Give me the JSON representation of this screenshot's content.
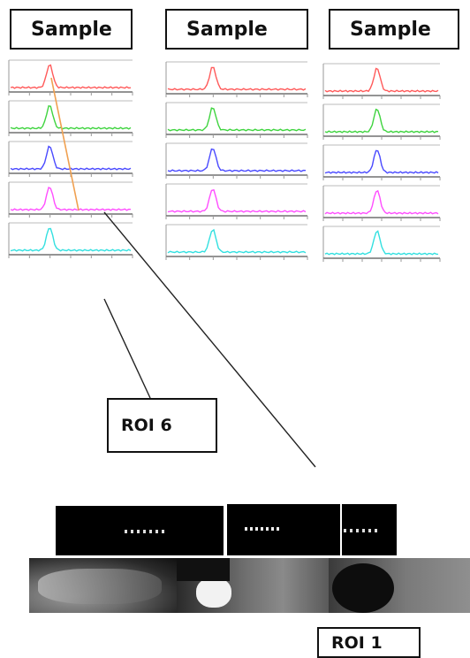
{
  "headers": [
    "Sample",
    "Sample",
    "Sample"
  ],
  "roi_labels": {
    "roi6": "ROI 6",
    "roi1": "ROI 1"
  },
  "trace_colors": [
    "#ff5a5a",
    "#3fd43f",
    "#4a4aff",
    "#ff4dff",
    "#33e0e0"
  ],
  "connector_colors": {
    "highlight": "#f0a050",
    "leader": "#222222"
  },
  "chart_data": [
    {
      "type": "line",
      "title": "",
      "panel": "left",
      "traces": 5,
      "peak_shape": "single narrow peak per trace"
    },
    {
      "type": "line",
      "title": "",
      "panel": "middle",
      "traces": 5,
      "peak_shape": "single narrow peak per trace"
    },
    {
      "type": "line",
      "title": "",
      "panel": "right",
      "traces": 5,
      "peak_shape": "single narrow peak per trace"
    }
  ]
}
